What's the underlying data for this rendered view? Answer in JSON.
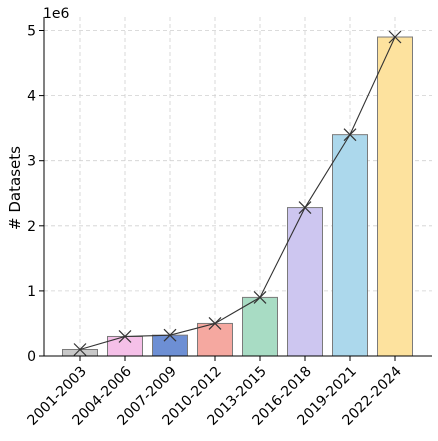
{
  "chart_data": {
    "type": "bar",
    "categories": [
      "2001-2003",
      "2004-2006",
      "2007-2009",
      "2010-2012",
      "2013-2015",
      "2016-2018",
      "2019-2021",
      "2022-2024"
    ],
    "values": [
      100000,
      300000,
      320000,
      500000,
      900000,
      2280000,
      3400000,
      4900000
    ],
    "line_values": [
      100000,
      300000,
      320000,
      500000,
      900000,
      2280000,
      3400000,
      4900000
    ],
    "bar_colors": [
      "#c8c8c8",
      "#f5c0e8",
      "#6d8fd4",
      "#f5a8a0",
      "#a8dcc4",
      "#cdc6f0",
      "#acd8ec",
      "#fde29e"
    ],
    "line_color": "#333333",
    "marker": "x",
    "xlabel": "",
    "ylabel": "# Datasets",
    "scale_label": "1e6",
    "ylim": [
      0,
      5000000
    ],
    "yticks": [
      0,
      1000000,
      2000000,
      3000000,
      4000000,
      5000000
    ],
    "ytick_labels": [
      "0",
      "1",
      "2",
      "3",
      "4",
      "5"
    ],
    "grid": true
  }
}
